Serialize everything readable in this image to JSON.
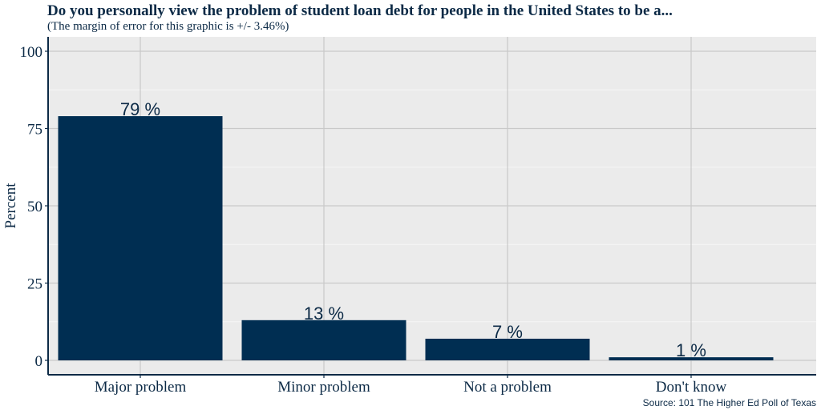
{
  "chart_data": {
    "type": "bar",
    "title": "Do you personally view the problem of student loan debt for people in the United States to be a...",
    "subtitle": "(The margin of error for this graphic is +/- 3.46%)",
    "source": "Source: 101 The Higher Ed Poll of Texas",
    "xlabel": "",
    "ylabel": "Percent",
    "categories": [
      "Major problem",
      "Minor problem",
      "Not a problem",
      "Don't know"
    ],
    "values": [
      79,
      13,
      7,
      1
    ],
    "data_labels": [
      "79 %",
      "13 %",
      "7 %",
      "1 %"
    ],
    "ylim": [
      0,
      100
    ],
    "yticks": [
      0,
      25,
      50,
      75,
      100
    ],
    "grid": true,
    "colors": {
      "bar": "#002e52",
      "panel": "#ebebeb",
      "grid_major": "#c9c9c9",
      "grid_minor": "#f4f4f4",
      "text": "#0c2a46"
    }
  }
}
